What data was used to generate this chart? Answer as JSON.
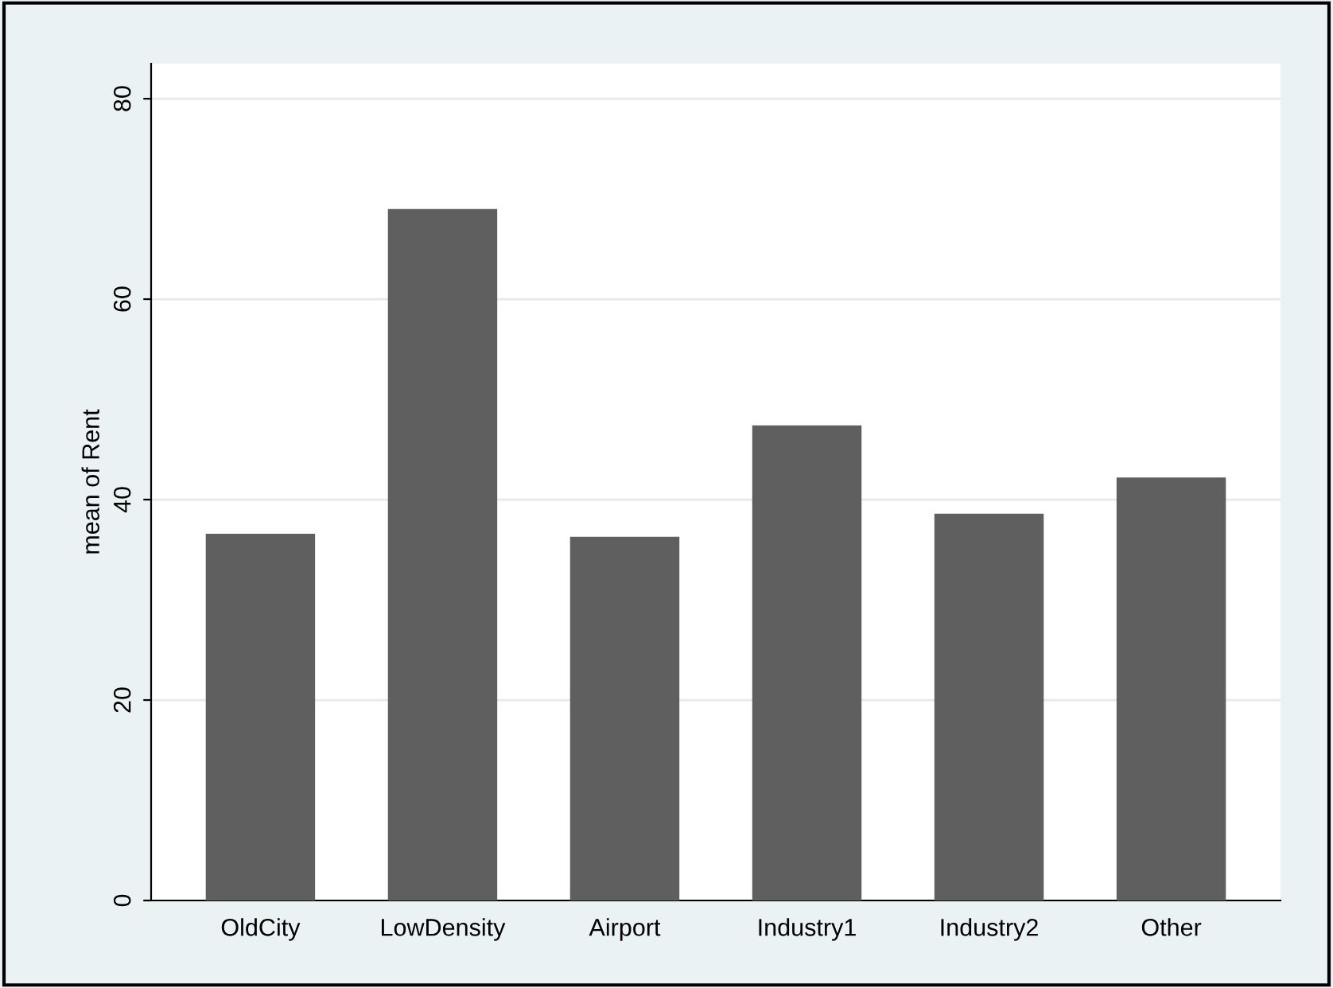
{
  "chart_data": {
    "type": "bar",
    "ylabel": "mean of Rent",
    "categories": [
      "OldCity",
      "LowDensity",
      "Airport",
      "Industry1",
      "Industry2",
      "Other"
    ],
    "values": [
      36.6,
      69.0,
      36.3,
      47.4,
      38.6,
      42.2
    ],
    "color": "#5f5f5f",
    "ylim": [
      0,
      83.5
    ],
    "yticks": [
      0,
      20,
      40,
      60,
      80
    ],
    "grid": "y"
  }
}
